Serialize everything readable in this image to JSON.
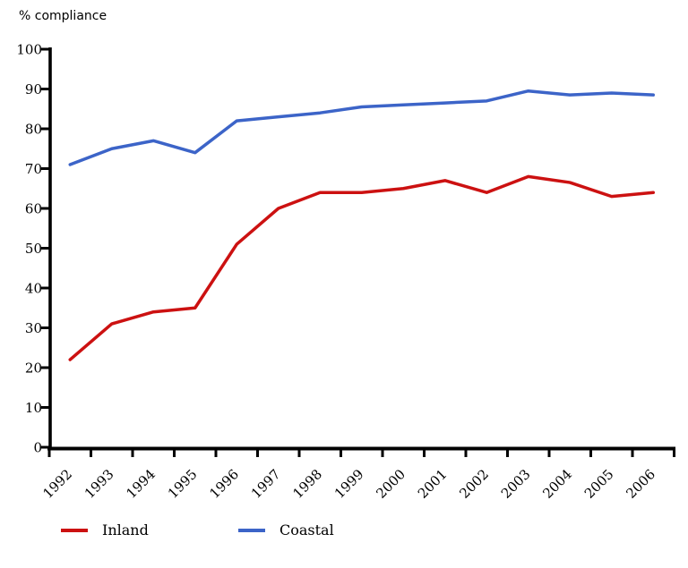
{
  "chart_data": {
    "type": "line",
    "title": "",
    "ylabel": "% compliance",
    "xlabel": "",
    "x": [
      "1992",
      "1993",
      "1994",
      "1995",
      "1996",
      "1997",
      "1998",
      "1999",
      "2000",
      "2001",
      "2002",
      "2003",
      "2004",
      "2005",
      "2006"
    ],
    "series": [
      {
        "name": "Inland",
        "color": "#CC1111",
        "values": [
          22,
          31,
          34,
          35,
          51,
          60,
          64,
          64,
          65,
          67,
          64,
          68,
          66.5,
          63,
          64
        ]
      },
      {
        "name": "Coastal",
        "color": "#3C64C8",
        "values": [
          71,
          75,
          77,
          74,
          82,
          83,
          84,
          85.5,
          86,
          86.5,
          87,
          89.5,
          88.5,
          89,
          88.5
        ]
      }
    ],
    "ylim": [
      0,
      100
    ],
    "yticks": [
      0,
      10,
      20,
      30,
      40,
      50,
      60,
      70,
      80,
      90,
      100
    ],
    "grid": false,
    "legend_position": "bottom",
    "axis_color": "#000000"
  }
}
